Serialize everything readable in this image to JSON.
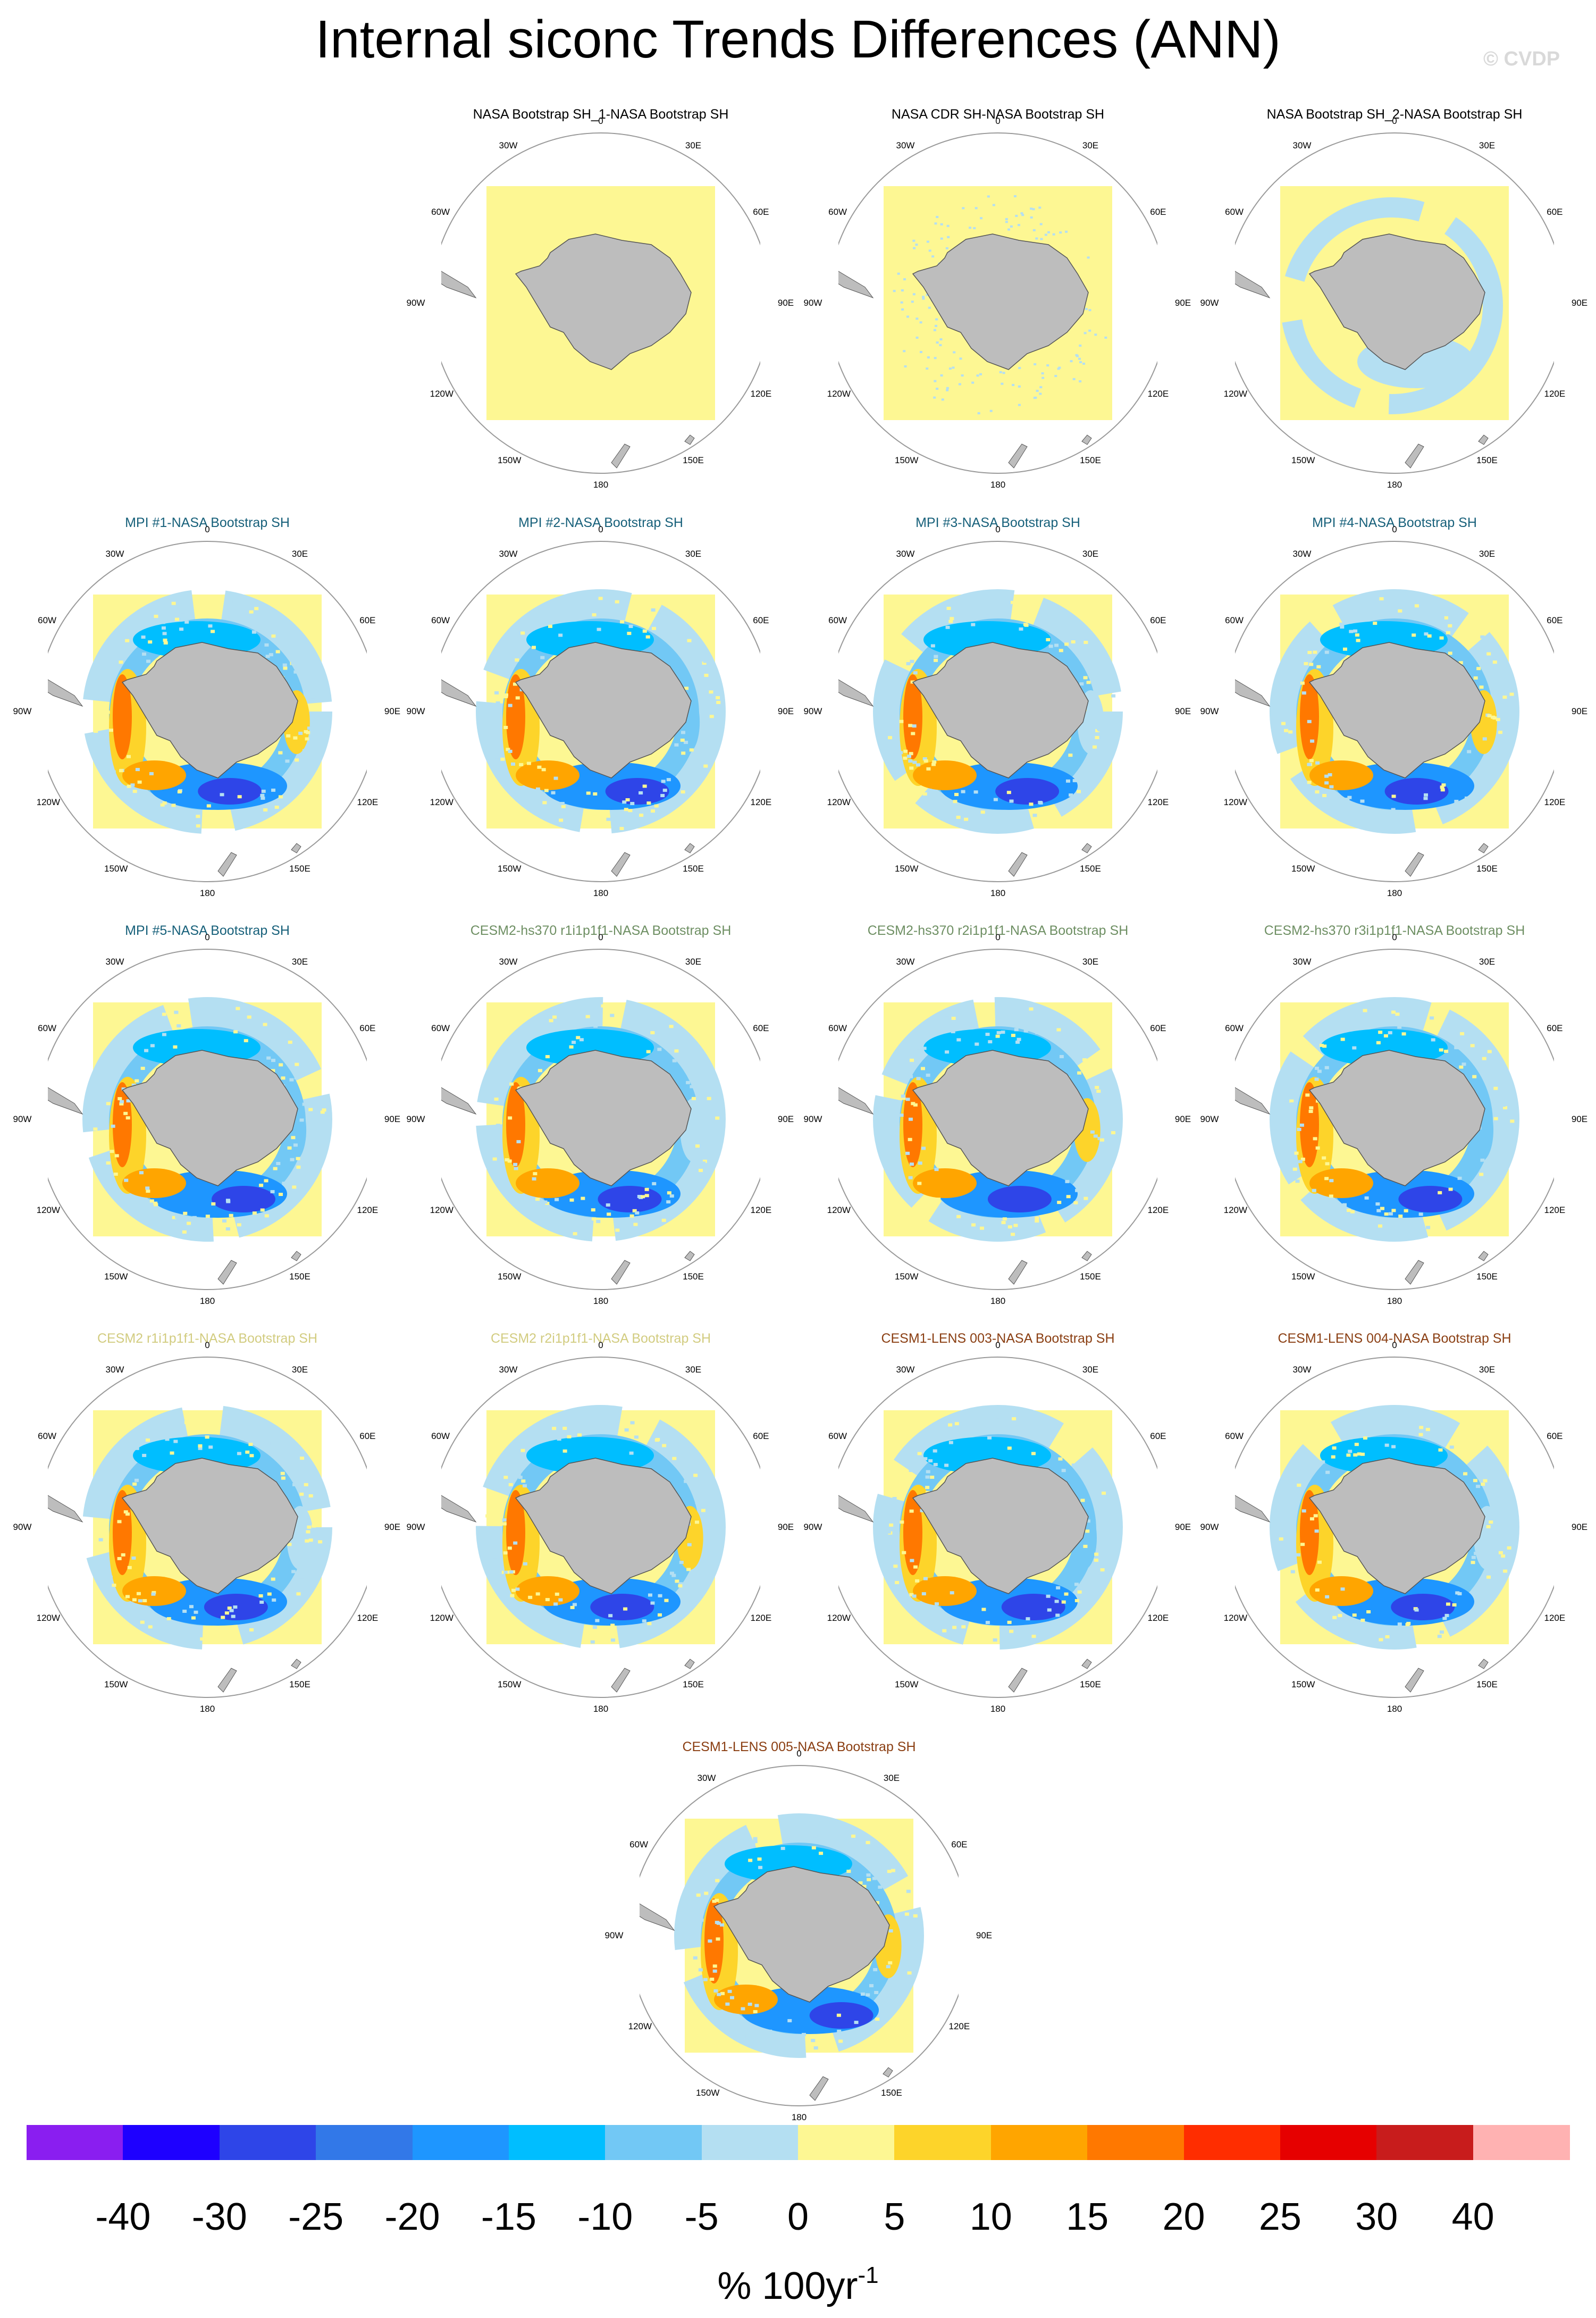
{
  "title": "Internal siconc Trends Differences (ANN)",
  "watermark": "© CVDP",
  "units": {
    "main": "% 100yr",
    "exp": "-1"
  },
  "lon_labels": [
    "0",
    "30E",
    "60E",
    "90E",
    "120E",
    "150E",
    "180",
    "150W",
    "120W",
    "90W",
    "60W",
    "30W"
  ],
  "title_colors": {
    "obs": "#000000",
    "MPI": "#17607a",
    "CESM2-hs370": "#6e8f63",
    "CESM2": "#d2cc80",
    "CESM1-LENS": "#8a3e12"
  },
  "panels": [
    {
      "title": "NASA Bootstrap SH_1-NASA Bootstrap SH",
      "group": "obs",
      "pattern": "zero"
    },
    {
      "title": "NASA CDR SH-NASA Bootstrap SH",
      "group": "obs",
      "pattern": "speckle"
    },
    {
      "title": "NASA Bootstrap SH_2-NASA Bootstrap SH",
      "group": "obs",
      "pattern": "light"
    },
    {
      "title": "MPI #1-NASA Bootstrap SH",
      "group": "MPI",
      "pattern": "model"
    },
    {
      "title": "MPI #2-NASA Bootstrap SH",
      "group": "MPI",
      "pattern": "model"
    },
    {
      "title": "MPI #3-NASA Bootstrap SH",
      "group": "MPI",
      "pattern": "model"
    },
    {
      "title": "MPI #4-NASA Bootstrap SH",
      "group": "MPI",
      "pattern": "model"
    },
    {
      "title": "MPI #5-NASA Bootstrap SH",
      "group": "MPI",
      "pattern": "model"
    },
    {
      "title": "CESM2-hs370 r1i1p1f1-NASA Bootstrap SH",
      "group": "CESM2-hs370",
      "pattern": "model"
    },
    {
      "title": "CESM2-hs370 r2i1p1f1-NASA Bootstrap SH",
      "group": "CESM2-hs370",
      "pattern": "model"
    },
    {
      "title": "CESM2-hs370 r3i1p1f1-NASA Bootstrap SH",
      "group": "CESM2-hs370",
      "pattern": "model"
    },
    {
      "title": "CESM2 r1i1p1f1-NASA Bootstrap SH",
      "group": "CESM2",
      "pattern": "model"
    },
    {
      "title": "CESM2 r2i1p1f1-NASA Bootstrap SH",
      "group": "CESM2",
      "pattern": "model"
    },
    {
      "title": "CESM1-LENS 003-NASA Bootstrap SH",
      "group": "CESM1-LENS",
      "pattern": "model"
    },
    {
      "title": "CESM1-LENS 004-NASA Bootstrap SH",
      "group": "CESM1-LENS",
      "pattern": "model"
    },
    {
      "title": "CESM1-LENS 005-NASA Bootstrap SH",
      "group": "CESM1-LENS",
      "pattern": "model"
    }
  ],
  "colorbar": {
    "colors": [
      "#8a1ef0",
      "#1e00ff",
      "#2e45e8",
      "#3278e8",
      "#1e96ff",
      "#00beff",
      "#72c8f5",
      "#b4dff2",
      "#fdf793",
      "#fdd42a",
      "#ffa500",
      "#ff7800",
      "#ff2d00",
      "#e60000",
      "#c81c1c",
      "#ffb2b2"
    ],
    "levels": [
      "-40",
      "-30",
      "-25",
      "-20",
      "-15",
      "-10",
      "-5",
      "0",
      "5",
      "10",
      "15",
      "20",
      "25",
      "30",
      "40"
    ]
  }
}
